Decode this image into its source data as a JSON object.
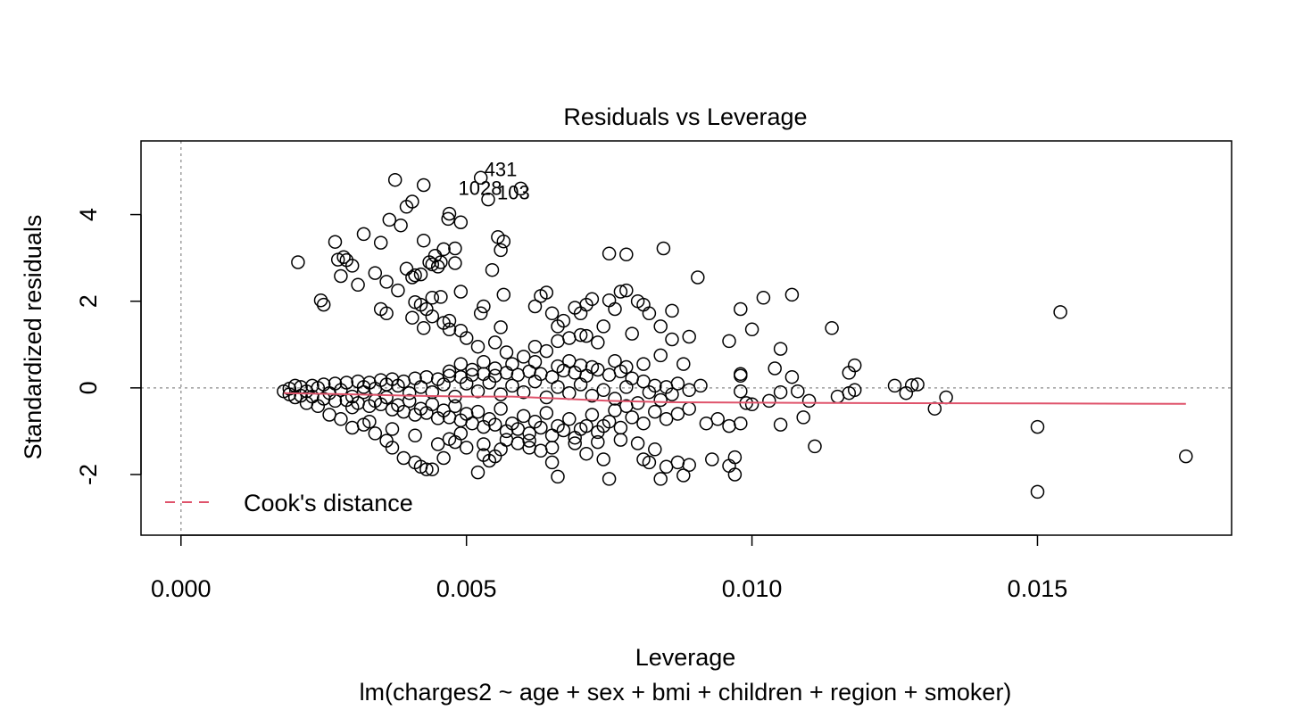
{
  "chart_data": {
    "type": "scatter",
    "title": "Residuals vs Leverage",
    "subtitle": "lm(charges2 ~ age + sex + bmi + children + region + smoker)",
    "xlabel": "Leverage",
    "ylabel": "Standardized residuals",
    "xlim": [
      -0.0007,
      0.0184
    ],
    "ylim": [
      -3.4,
      5.7
    ],
    "x_ticks": [
      0.0,
      0.005,
      0.01,
      0.015
    ],
    "x_tick_labels": [
      "0.000",
      "0.005",
      "0.010",
      "0.015"
    ],
    "y_ticks": [
      -2,
      0,
      2,
      4
    ],
    "y_tick_labels": [
      "-2",
      "0",
      "2",
      "4"
    ],
    "reference_lines": {
      "x": 0,
      "y": 0
    },
    "legend": {
      "position": "bottom-left",
      "entries": [
        {
          "label": "Cook's distance",
          "style": "dashed",
          "color": "#df536b"
        }
      ]
    },
    "smooth_color": "#df536b",
    "smooth": [
      [
        0.0018,
        -0.12
      ],
      [
        0.003,
        -0.15
      ],
      [
        0.004,
        -0.18
      ],
      [
        0.005,
        -0.2
      ],
      [
        0.0058,
        -0.2
      ],
      [
        0.0065,
        -0.24
      ],
      [
        0.0075,
        -0.3
      ],
      [
        0.0085,
        -0.33
      ],
      [
        0.01,
        -0.34
      ],
      [
        0.012,
        -0.35
      ],
      [
        0.015,
        -0.36
      ],
      [
        0.0176,
        -0.37
      ]
    ],
    "labeled_points": [
      {
        "label": "431",
        "x": 0.00525,
        "y": 4.85
      },
      {
        "label": "1028",
        "x": 0.00595,
        "y": 4.6
      },
      {
        "label": "103",
        "x": 0.00538,
        "y": 4.35
      }
    ],
    "points": [
      [
        0.00375,
        4.8
      ],
      [
        0.00425,
        4.68
      ],
      [
        0.00525,
        4.85
      ],
      [
        0.00595,
        4.6
      ],
      [
        0.00538,
        4.35
      ],
      [
        0.00405,
        4.3
      ],
      [
        0.00395,
        4.18
      ],
      [
        0.0047,
        4.02
      ],
      [
        0.00468,
        3.9
      ],
      [
        0.0049,
        3.82
      ],
      [
        0.00365,
        3.88
      ],
      [
        0.00385,
        3.75
      ],
      [
        0.0032,
        3.55
      ],
      [
        0.00555,
        3.48
      ],
      [
        0.00565,
        3.38
      ],
      [
        0.0027,
        3.37
      ],
      [
        0.0035,
        3.35
      ],
      [
        0.00425,
        3.4
      ],
      [
        0.0056,
        3.18
      ],
      [
        0.0046,
        3.2
      ],
      [
        0.0048,
        3.22
      ],
      [
        0.00285,
        3.02
      ],
      [
        0.0029,
        2.95
      ],
      [
        0.00445,
        3.05
      ],
      [
        0.00435,
        2.9
      ],
      [
        0.0044,
        2.85
      ],
      [
        0.00455,
        2.9
      ],
      [
        0.0045,
        2.8
      ],
      [
        0.0048,
        2.88
      ],
      [
        0.00395,
        2.75
      ],
      [
        0.00205,
        2.9
      ],
      [
        0.00275,
        2.96
      ],
      [
        0.003,
        2.82
      ],
      [
        0.0028,
        2.58
      ],
      [
        0.0034,
        2.65
      ],
      [
        0.00545,
        2.72
      ],
      [
        0.00405,
        2.55
      ],
      [
        0.0041,
        2.6
      ],
      [
        0.0042,
        2.62
      ],
      [
        0.0031,
        2.38
      ],
      [
        0.0036,
        2.45
      ],
      [
        0.0038,
        2.25
      ],
      [
        0.0049,
        2.22
      ],
      [
        0.0044,
        2.08
      ],
      [
        0.00455,
        2.1
      ],
      [
        0.0041,
        1.98
      ],
      [
        0.0042,
        1.92
      ],
      [
        0.0043,
        1.82
      ],
      [
        0.00245,
        2.02
      ],
      [
        0.0025,
        1.92
      ],
      [
        0.0035,
        1.82
      ],
      [
        0.0036,
        1.72
      ],
      [
        0.00405,
        1.62
      ],
      [
        0.0044,
        1.65
      ],
      [
        0.0047,
        1.55
      ],
      [
        0.0049,
        1.32
      ],
      [
        0.00425,
        1.38
      ],
      [
        0.00525,
        1.72
      ],
      [
        0.0053,
        1.88
      ],
      [
        0.0056,
        1.4
      ],
      [
        0.00565,
        2.15
      ],
      [
        0.0062,
        1.88
      ],
      [
        0.0063,
        2.12
      ],
      [
        0.0064,
        2.2
      ],
      [
        0.0065,
        1.72
      ],
      [
        0.0066,
        1.42
      ],
      [
        0.0067,
        1.55
      ],
      [
        0.0069,
        1.85
      ],
      [
        0.007,
        1.72
      ],
      [
        0.0071,
        1.92
      ],
      [
        0.0072,
        2.05
      ],
      [
        0.0074,
        1.42
      ],
      [
        0.0075,
        2.02
      ],
      [
        0.0076,
        1.82
      ],
      [
        0.0077,
        2.22
      ],
      [
        0.0078,
        2.25
      ],
      [
        0.0079,
        1.25
      ],
      [
        0.008,
        2.0
      ],
      [
        0.0081,
        1.92
      ],
      [
        0.0082,
        1.72
      ],
      [
        0.0084,
        1.42
      ],
      [
        0.0086,
        1.78
      ],
      [
        0.0075,
        3.1
      ],
      [
        0.0078,
        3.08
      ],
      [
        0.00845,
        3.22
      ],
      [
        0.00905,
        2.55
      ],
      [
        0.0068,
        1.15
      ],
      [
        0.0071,
        1.2
      ],
      [
        0.0076,
        0.62
      ],
      [
        0.0081,
        0.55
      ],
      [
        0.0084,
        0.75
      ],
      [
        0.0086,
        1.12
      ],
      [
        0.0089,
        1.18
      ],
      [
        0.0088,
        0.55
      ],
      [
        0.0096,
        1.08
      ],
      [
        0.0098,
        1.82
      ],
      [
        0.01,
        1.35
      ],
      [
        0.0102,
        2.08
      ],
      [
        0.0107,
        2.15
      ],
      [
        0.0114,
        1.38
      ],
      [
        0.0154,
        1.75
      ],
      [
        0.0105,
        0.9
      ],
      [
        0.0098,
        0.32
      ],
      [
        0.0098,
        0.28
      ],
      [
        0.0104,
        0.45
      ],
      [
        0.0107,
        0.25
      ],
      [
        0.0117,
        0.35
      ],
      [
        0.0118,
        0.52
      ],
      [
        0.0098,
        -0.08
      ],
      [
        0.0099,
        -0.35
      ],
      [
        0.01,
        -0.38
      ],
      [
        0.0103,
        -0.3
      ],
      [
        0.0105,
        -0.1
      ],
      [
        0.0108,
        -0.08
      ],
      [
        0.011,
        -0.3
      ],
      [
        0.0109,
        -0.68
      ],
      [
        0.0105,
        -0.85
      ],
      [
        0.0111,
        -1.35
      ],
      [
        0.0115,
        -0.2
      ],
      [
        0.0117,
        -0.12
      ],
      [
        0.0118,
        -0.05
      ],
      [
        0.0125,
        0.05
      ],
      [
        0.0127,
        -0.12
      ],
      [
        0.0128,
        0.06
      ],
      [
        0.0129,
        0.08
      ],
      [
        0.0132,
        -0.48
      ],
      [
        0.0134,
        -0.22
      ],
      [
        0.015,
        -0.9
      ],
      [
        0.015,
        -2.4
      ],
      [
        0.0176,
        -1.58
      ],
      [
        0.0092,
        -0.82
      ],
      [
        0.0094,
        -0.72
      ],
      [
        0.0096,
        -0.88
      ],
      [
        0.0098,
        -0.82
      ],
      [
        0.0093,
        -1.65
      ],
      [
        0.0097,
        -1.6
      ],
      [
        0.0096,
        -1.8
      ],
      [
        0.0097,
        -2.0
      ],
      [
        0.0089,
        -1.78
      ],
      [
        0.0088,
        -2.02
      ],
      [
        0.0087,
        -1.72
      ],
      [
        0.0085,
        -1.82
      ],
      [
        0.0084,
        -2.1
      ],
      [
        0.0082,
        -1.72
      ],
      [
        0.0081,
        -1.65
      ],
      [
        0.0083,
        -1.42
      ],
      [
        0.008,
        -1.28
      ],
      [
        0.0075,
        -2.1
      ],
      [
        0.0074,
        -1.65
      ],
      [
        0.0071,
        -1.52
      ],
      [
        0.0066,
        -2.05
      ],
      [
        0.0065,
        -1.72
      ],
      [
        0.0063,
        -1.45
      ],
      [
        0.0061,
        -1.38
      ],
      [
        0.0059,
        -1.28
      ],
      [
        0.0056,
        -1.42
      ],
      [
        0.0055,
        -1.58
      ],
      [
        0.0054,
        -1.68
      ],
      [
        0.0053,
        -1.55
      ],
      [
        0.0052,
        -1.95
      ],
      [
        0.005,
        -1.38
      ],
      [
        0.0048,
        -1.25
      ],
      [
        0.0047,
        -1.18
      ],
      [
        0.0046,
        -1.62
      ],
      [
        0.0044,
        -1.88
      ],
      [
        0.0043,
        -1.88
      ],
      [
        0.0042,
        -1.82
      ],
      [
        0.0041,
        -1.72
      ],
      [
        0.0039,
        -1.62
      ],
      [
        0.0037,
        -1.38
      ],
      [
        0.0036,
        -1.22
      ],
      [
        0.0034,
        -1.05
      ],
      [
        0.0032,
        -0.85
      ],
      [
        0.003,
        -0.92
      ],
      [
        0.0028,
        -0.72
      ],
      [
        0.0026,
        -0.62
      ],
      [
        0.0024,
        -0.42
      ],
      [
        0.0022,
        -0.35
      ],
      [
        0.002,
        -0.22
      ],
      [
        0.0018,
        -0.08
      ],
      [
        0.0019,
        -0.02
      ],
      [
        0.0021,
        0.02
      ],
      [
        0.0023,
        0.05
      ],
      [
        0.0025,
        0.08
      ],
      [
        0.0027,
        0.1
      ],
      [
        0.0029,
        0.12
      ],
      [
        0.0031,
        0.15
      ],
      [
        0.0033,
        0.12
      ],
      [
        0.0035,
        0.18
      ],
      [
        0.0037,
        0.2
      ],
      [
        0.0039,
        0.15
      ],
      [
        0.0041,
        0.22
      ],
      [
        0.0043,
        0.25
      ],
      [
        0.0045,
        0.2
      ],
      [
        0.0047,
        0.28
      ],
      [
        0.0049,
        0.25
      ],
      [
        0.0051,
        0.3
      ],
      [
        0.0053,
        0.32
      ],
      [
        0.0055,
        0.28
      ],
      [
        0.0057,
        0.35
      ],
      [
        0.0059,
        0.3
      ],
      [
        0.0061,
        0.38
      ],
      [
        0.0063,
        0.32
      ],
      [
        0.0065,
        0.25
      ],
      [
        0.0067,
        0.4
      ],
      [
        0.0069,
        0.35
      ],
      [
        0.0071,
        0.28
      ],
      [
        0.0073,
        0.42
      ],
      [
        0.0075,
        0.3
      ],
      [
        0.0077,
        0.38
      ],
      [
        0.0079,
        0.22
      ],
      [
        0.0081,
        0.15
      ],
      [
        0.0083,
        0.05
      ],
      [
        0.0085,
        0.02
      ],
      [
        0.0087,
        0.1
      ],
      [
        0.0089,
        -0.05
      ],
      [
        0.0091,
        0.05
      ],
      [
        0.0019,
        -0.15
      ],
      [
        0.0021,
        -0.18
      ],
      [
        0.0023,
        -0.2
      ],
      [
        0.0025,
        -0.25
      ],
      [
        0.0027,
        -0.3
      ],
      [
        0.0029,
        -0.28
      ],
      [
        0.0031,
        -0.35
      ],
      [
        0.0033,
        -0.42
      ],
      [
        0.0035,
        -0.38
      ],
      [
        0.0037,
        -0.5
      ],
      [
        0.0039,
        -0.55
      ],
      [
        0.0041,
        -0.62
      ],
      [
        0.0043,
        -0.58
      ],
      [
        0.0045,
        -0.7
      ],
      [
        0.0047,
        -0.68
      ],
      [
        0.0049,
        -0.75
      ],
      [
        0.0051,
        -0.82
      ],
      [
        0.0053,
        -0.9
      ],
      [
        0.0055,
        -0.85
      ],
      [
        0.0057,
        -1.0
      ],
      [
        0.0059,
        -0.95
      ],
      [
        0.0061,
        -1.05
      ],
      [
        0.0063,
        -0.92
      ],
      [
        0.0065,
        -1.1
      ],
      [
        0.0067,
        -0.98
      ],
      [
        0.0069,
        -1.15
      ],
      [
        0.0071,
        -0.88
      ],
      [
        0.0073,
        -1.02
      ],
      [
        0.0075,
        -0.78
      ],
      [
        0.0077,
        -0.92
      ],
      [
        0.0079,
        -0.68
      ],
      [
        0.0081,
        -0.82
      ],
      [
        0.0083,
        -0.55
      ],
      [
        0.0085,
        -0.72
      ],
      [
        0.0087,
        -0.6
      ],
      [
        0.0089,
        -0.48
      ],
      [
        0.0076,
        -0.52
      ],
      [
        0.0078,
        -0.42
      ],
      [
        0.0072,
        -0.62
      ],
      [
        0.0068,
        -0.72
      ],
      [
        0.0064,
        -0.58
      ],
      [
        0.006,
        -0.65
      ],
      [
        0.0056,
        -0.48
      ],
      [
        0.0052,
        -0.55
      ],
      [
        0.0048,
        -0.42
      ],
      [
        0.0044,
        -0.38
      ],
      [
        0.004,
        -0.3
      ],
      [
        0.0036,
        -0.22
      ],
      [
        0.0032,
        -0.1
      ],
      [
        0.0028,
        -0.05
      ],
      [
        0.0024,
        0.0
      ],
      [
        0.0034,
        -0.02
      ],
      [
        0.0038,
        0.05
      ],
      [
        0.0042,
        0.02
      ],
      [
        0.0046,
        0.08
      ],
      [
        0.005,
        0.1
      ],
      [
        0.0054,
        0.12
      ],
      [
        0.0058,
        0.05
      ],
      [
        0.0062,
        0.15
      ],
      [
        0.0066,
        0.02
      ],
      [
        0.007,
        0.08
      ],
      [
        0.0074,
        -0.05
      ],
      [
        0.0078,
        0.02
      ],
      [
        0.0082,
        -0.1
      ],
      [
        0.0086,
        -0.15
      ],
      [
        0.0084,
        -0.28
      ],
      [
        0.008,
        -0.35
      ],
      [
        0.0076,
        -0.25
      ],
      [
        0.0072,
        -0.18
      ],
      [
        0.0068,
        -0.12
      ],
      [
        0.0064,
        -0.22
      ],
      [
        0.006,
        -0.1
      ],
      [
        0.0056,
        -0.15
      ],
      [
        0.0052,
        -0.08
      ],
      [
        0.0048,
        -0.2
      ],
      [
        0.0044,
        -0.1
      ],
      [
        0.004,
        -0.12
      ],
      [
        0.0036,
        0.08
      ],
      [
        0.0032,
        0.02
      ],
      [
        0.003,
        -0.2
      ],
      [
        0.0026,
        -0.12
      ],
      [
        0.0022,
        -0.08
      ],
      [
        0.002,
        0.05
      ],
      [
        0.0057,
        -1.2
      ],
      [
        0.0053,
        -1.3
      ],
      [
        0.0049,
        -1.05
      ],
      [
        0.0045,
        -1.3
      ],
      [
        0.0041,
        -1.1
      ],
      [
        0.0037,
        -0.95
      ],
      [
        0.0033,
        -0.78
      ],
      [
        0.0061,
        -1.22
      ],
      [
        0.0065,
        -1.38
      ],
      [
        0.0069,
        -1.28
      ],
      [
        0.0073,
        -1.25
      ],
      [
        0.0077,
        -1.2
      ],
      [
        0.005,
        -0.6
      ],
      [
        0.0054,
        -0.72
      ],
      [
        0.0058,
        -0.82
      ],
      [
        0.0062,
        -0.78
      ],
      [
        0.0066,
        -0.88
      ],
      [
        0.007,
        -0.95
      ],
      [
        0.0074,
        -0.88
      ],
      [
        0.0046,
        -0.52
      ],
      [
        0.0042,
        -0.48
      ],
      [
        0.0038,
        -0.4
      ],
      [
        0.0034,
        -0.3
      ],
      [
        0.003,
        -0.45
      ],
      [
        0.0055,
        0.45
      ],
      [
        0.0051,
        0.42
      ],
      [
        0.0047,
        0.38
      ],
      [
        0.0058,
        0.55
      ],
      [
        0.0062,
        0.6
      ],
      [
        0.0066,
        0.5
      ],
      [
        0.007,
        0.52
      ],
      [
        0.0053,
        0.6
      ],
      [
        0.0049,
        0.55
      ],
      [
        0.006,
        0.72
      ],
      [
        0.0064,
        0.85
      ],
      [
        0.0057,
        0.82
      ],
      [
        0.0068,
        0.62
      ],
      [
        0.0072,
        0.48
      ],
      [
        0.0052,
        0.95
      ],
      [
        0.0055,
        1.05
      ],
      [
        0.0047,
        1.35
      ],
      [
        0.0046,
        1.5
      ],
      [
        0.005,
        1.15
      ],
      [
        0.0062,
        0.95
      ],
      [
        0.0066,
        1.08
      ],
      [
        0.007,
        1.22
      ],
      [
        0.0073,
        1.05
      ],
      [
        0.0078,
        0.48
      ]
    ]
  }
}
